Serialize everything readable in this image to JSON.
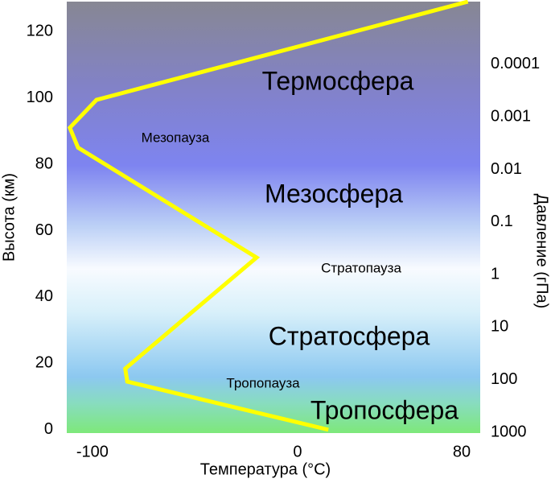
{
  "chart_data": {
    "type": "line",
    "x_label": "Температура (°C)",
    "y_label": "Высота (км)",
    "y2_label": "Давление (гПа)",
    "x": [
      15,
      -83,
      -84,
      -20,
      -107,
      -111,
      -98,
      83
    ],
    "values": [
      0,
      14.5,
      18.4,
      51.9,
      85,
      91,
      99.4,
      129
    ],
    "color": "#ffff00",
    "xlim": [
      -112.5,
      89
    ],
    "xticks": [
      -100,
      0,
      80
    ],
    "ylim": [
      -1,
      129
    ],
    "yticks": [
      0,
      20,
      40,
      60,
      80,
      100,
      120
    ],
    "y2lim": [
      1035,
      6.4e-06
    ],
    "y2log": true,
    "y2ticks": [
      1000,
      100,
      10,
      1,
      0.1,
      0.01,
      0.001,
      0.0001
    ],
    "annotations": [
      "Термосфера",
      "Мезопауза",
      "Мезосфера",
      "Стратопауза",
      "Стратосфера",
      "Тропопауза",
      "Тропосфера"
    ]
  }
}
